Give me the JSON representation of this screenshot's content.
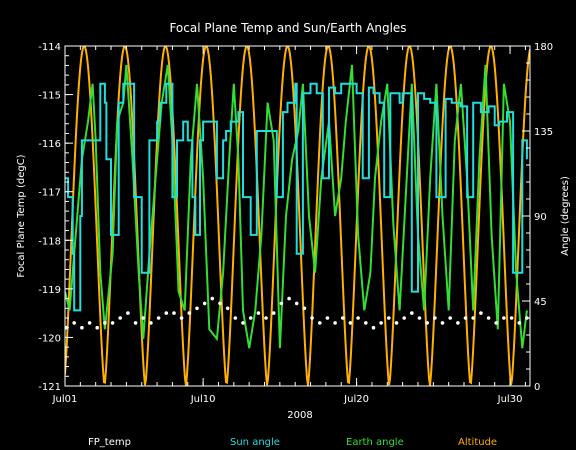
{
  "chart_data": {
    "type": "line",
    "title": "Focal Plane Temp and Sun/Earth Angles",
    "xlabel": "2008",
    "ylabel_left": "Focal Plane Temp (degC)",
    "ylabel_right": "Angle (degrees)",
    "x_range_days": [
      1,
      31.3
    ],
    "x_ticks": [
      {
        "day": 1,
        "label": "Jul01"
      },
      {
        "day": 10,
        "label": "Jul10"
      },
      {
        "day": 20,
        "label": "Jul20"
      },
      {
        "day": 30,
        "label": "Jul30"
      }
    ],
    "ylim_left": [
      -121,
      -114
    ],
    "yticks_left": [
      "-114",
      "-115",
      "-116",
      "-117",
      "-118",
      "-119",
      "-120",
      "-121"
    ],
    "ylim_right": [
      0,
      180
    ],
    "yticks_right": [
      "180",
      "135",
      "90",
      "45",
      "0"
    ],
    "grid": false,
    "legend_position": "bottom",
    "colors": {
      "background": "#000000",
      "axes": "#ffffff",
      "FP_temp": "#ffffff",
      "Sun angle": "#22dddd",
      "Earth angle": "#33dd33",
      "Altitude": "#ffb000"
    },
    "series": [
      {
        "name": "FP_temp",
        "axis": "left",
        "style": "scatter",
        "x": [
          1.1,
          1.6,
          2.1,
          2.6,
          3.1,
          3.6,
          4.1,
          4.6,
          5.1,
          5.6,
          6.1,
          6.6,
          7.1,
          7.6,
          8.1,
          8.6,
          9.1,
          9.6,
          10.1,
          10.6,
          11.1,
          11.6,
          12.1,
          12.6,
          13.1,
          13.6,
          14.1,
          14.6,
          15.1,
          15.6,
          16.1,
          16.6,
          17.1,
          17.6,
          18.1,
          18.6,
          19.1,
          19.6,
          20.1,
          20.6,
          21.1,
          21.6,
          22.1,
          22.6,
          23.1,
          23.6,
          24.1,
          24.6,
          25.1,
          25.6,
          26.1,
          26.6,
          27.1,
          27.6,
          28.1,
          28.6,
          29.1,
          29.6,
          30.1,
          30.6,
          31.1
        ],
        "values": [
          -119.8,
          -119.7,
          -119.8,
          -119.7,
          -119.8,
          -119.7,
          -119.7,
          -119.6,
          -119.5,
          -119.7,
          -119.6,
          -119.7,
          -119.6,
          -119.5,
          -119.5,
          -119.6,
          -119.5,
          -119.4,
          -119.3,
          -119.2,
          -119.3,
          -119.4,
          -119.6,
          -119.7,
          -119.6,
          -119.5,
          -119.6,
          -119.5,
          -119.3,
          -119.2,
          -119.3,
          -119.4,
          -119.6,
          -119.7,
          -119.6,
          -119.7,
          -119.6,
          -119.7,
          -119.6,
          -119.7,
          -119.8,
          -119.7,
          -119.6,
          -119.7,
          -119.6,
          -119.5,
          -119.6,
          -119.7,
          -119.6,
          -119.7,
          -119.6,
          -119.7,
          -119.6,
          -119.6,
          -119.5,
          -119.6,
          -119.7,
          -119.6,
          -119.6,
          -119.7,
          -119.6
        ]
      },
      {
        "name": "Sun angle",
        "axis": "right",
        "style": "step",
        "x": [
          1.0,
          1.2,
          1.5,
          1.6,
          2.0,
          2.1,
          2.8,
          3.3,
          3.6,
          3.7,
          4.0,
          4.5,
          4.8,
          5.0,
          5.5,
          6.0,
          6.5,
          7.0,
          7.2,
          7.6,
          8.0,
          8.3,
          8.7,
          9.0,
          9.3,
          9.5,
          9.8,
          10.0,
          10.5,
          10.9,
          11.3,
          11.5,
          11.8,
          12.0,
          12.3,
          12.6,
          13.1,
          13.5,
          14.0,
          14.2,
          14.6,
          14.8,
          15.2,
          15.5,
          16.0,
          16.1,
          16.5,
          17.0,
          17.4,
          17.8,
          18.2,
          18.6,
          19.0,
          19.6,
          20.0,
          20.4,
          20.8,
          21.1,
          21.5,
          21.8,
          22.2,
          22.8,
          23.0,
          23.6,
          24.0,
          24.4,
          24.8,
          25.2,
          25.8,
          26.2,
          26.8,
          27.2,
          27.6,
          28.1,
          28.6,
          29.0,
          29.3,
          29.8,
          30.2,
          30.8,
          31.1
        ],
        "values": [
          110,
          100,
          70,
          40,
          90,
          130,
          130,
          160,
          150,
          120,
          80,
          150,
          160,
          160,
          100,
          60,
          130,
          140,
          150,
          160,
          100,
          130,
          140,
          130,
          100,
          80,
          130,
          140,
          140,
          110,
          130,
          135,
          140,
          140,
          145,
          100,
          80,
          135,
          135,
          135,
          135,
          100,
          145,
          150,
          160,
          70,
          155,
          160,
          155,
          110,
          158,
          155,
          160,
          160,
          155,
          110,
          158,
          155,
          150,
          100,
          155,
          150,
          155,
          50,
          155,
          152,
          150,
          100,
          152,
          150,
          148,
          100,
          150,
          145,
          148,
          138,
          140,
          145,
          60,
          130,
          120
        ]
      },
      {
        "name": "Earth angle",
        "axis": "right",
        "style": "line",
        "x": [
          1.0,
          1.3,
          1.7,
          2.1,
          2.5,
          2.8,
          3.0,
          3.3,
          3.6,
          4.1,
          4.4,
          4.8,
          5.0,
          5.4,
          5.8,
          6.1,
          6.5,
          7.0,
          7.3,
          7.7,
          8.0,
          8.4,
          8.8,
          9.2,
          9.6,
          10.0,
          10.4,
          10.9,
          11.3,
          11.7,
          12.0,
          12.3,
          12.6,
          13.0,
          13.4,
          13.8,
          14.2,
          14.6,
          15.0,
          15.4,
          15.8,
          16.2,
          16.5,
          16.9,
          17.3,
          17.7,
          18.2,
          18.6,
          19.0,
          19.3,
          19.7,
          20.1,
          20.5,
          20.9,
          21.2,
          21.6,
          22.0,
          22.4,
          22.8,
          23.2,
          23.6,
          24.0,
          24.4,
          24.8,
          25.2,
          25.6,
          26.0,
          26.4,
          26.8,
          27.2,
          27.6,
          28.0,
          28.4,
          28.8,
          29.2,
          29.6,
          30.0,
          30.4,
          30.8,
          31.1
        ],
        "values": [
          50,
          40,
          80,
          120,
          140,
          160,
          130,
          60,
          30,
          70,
          140,
          150,
          170,
          120,
          60,
          25,
          70,
          120,
          150,
          170,
          130,
          50,
          40,
          120,
          160,
          110,
          30,
          25,
          60,
          120,
          160,
          120,
          40,
          20,
          40,
          80,
          150,
          130,
          20,
          90,
          120,
          135,
          160,
          90,
          60,
          110,
          140,
          90,
          110,
          140,
          170,
          80,
          40,
          60,
          110,
          140,
          160,
          85,
          40,
          100,
          160,
          80,
          40,
          110,
          160,
          90,
          40,
          130,
          160,
          110,
          40,
          120,
          170,
          80,
          30,
          160,
          140,
          60,
          20,
          40
        ]
      },
      {
        "name": "Altitude",
        "axis": "right",
        "style": "line",
        "orbit_period_days": 2.65,
        "first_peak_day": 2.25,
        "min": 0,
        "max": 180
      }
    ]
  },
  "legend": {
    "fp_temp": "FP_temp",
    "sun_angle": "Sun angle",
    "earth_angle": "Earth angle",
    "altitude": "Altitude"
  }
}
